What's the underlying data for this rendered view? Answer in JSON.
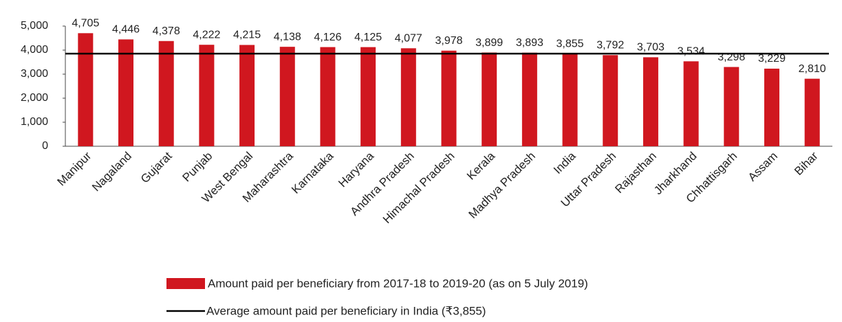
{
  "chart_data": {
    "type": "bar",
    "categories": [
      "Manipur",
      "Nagaland",
      "Gujarat",
      "Punjab",
      "West Bengal",
      "Maharashtra",
      "Karnataka",
      "Haryana",
      "Andhra Pradesh",
      "Himachal Pradesh",
      "Kerala",
      "Madhya Pradesh",
      "India",
      "Uttar Pradesh",
      "Rajasthan",
      "Jharkhand",
      "Chhattisgarh",
      "Assam",
      "Bihar"
    ],
    "series": [
      {
        "name": "Amount paid per beneficiary from 2017-18 to 2019-20 (as on 5 July 2019)",
        "color": "#d0171f",
        "values": [
          4705,
          4446,
          4378,
          4222,
          4215,
          4138,
          4126,
          4125,
          4077,
          3978,
          3899,
          3893,
          3855,
          3792,
          3703,
          3534,
          3298,
          3229,
          2810
        ],
        "value_labels": [
          "4,705",
          "4,446",
          "4,378",
          "4,222",
          "4,215",
          "4,138",
          "4,126",
          "4,125",
          "4,077",
          "3,978",
          "3,899",
          "3,893",
          "3,855",
          "3,792",
          "3,703",
          "3,534",
          "3,298",
          "3,229",
          "2,810"
        ]
      }
    ],
    "reference_line": {
      "name": "Average amount paid per beneficiary in India (₹3,855)",
      "value": 3855,
      "color": "#000000"
    },
    "ylim": [
      0,
      5000
    ],
    "yticks": [
      0,
      {
        "value": 1000,
        "label": "1,000"
      },
      {
        "value": 2000,
        "label": "2,000"
      },
      {
        "value": 3000,
        "label": "3,000"
      },
      {
        "value": 4000,
        "label": "4,000"
      },
      {
        "value": 5000,
        "label": "5,000"
      }
    ],
    "grid": false
  }
}
